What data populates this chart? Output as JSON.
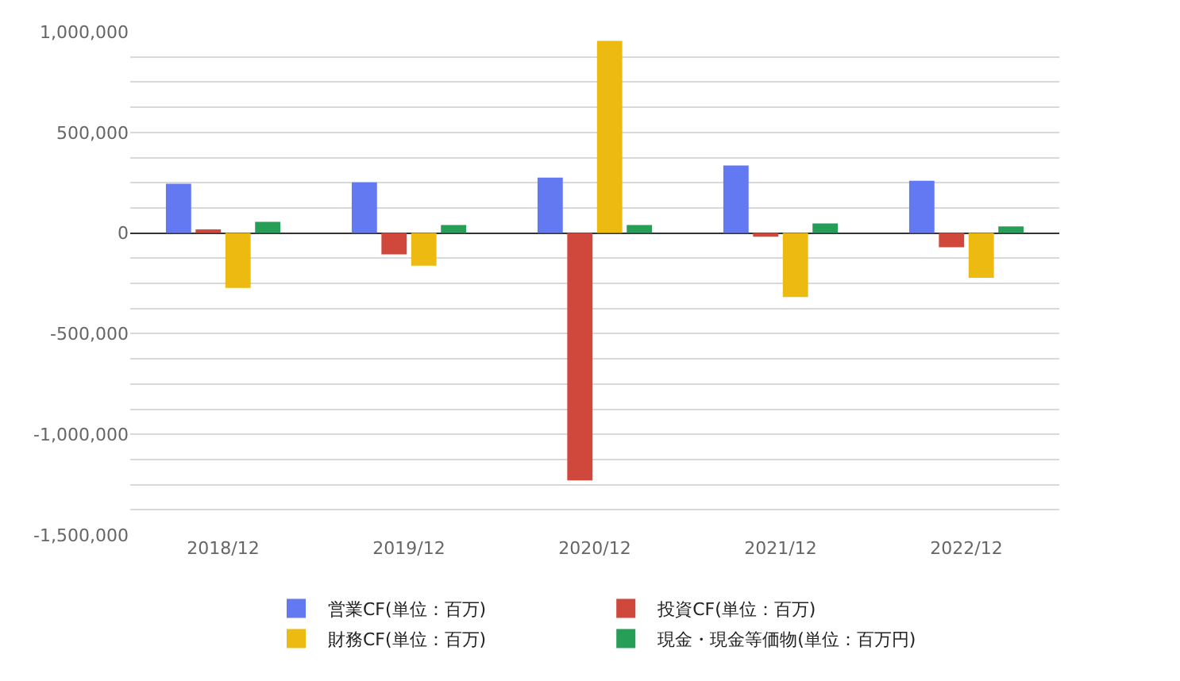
{
  "chart_data": {
    "type": "bar",
    "categories": [
      "2018/12",
      "2019/12",
      "2020/12",
      "2021/12",
      "2022/12"
    ],
    "series": [
      {
        "name": "営業CF(単位：百万)",
        "color": "#6379f2",
        "values": [
          245000,
          252000,
          275000,
          336000,
          260000
        ]
      },
      {
        "name": "投資CF(単位：百万)",
        "color": "#d0473b",
        "values": [
          18000,
          -106000,
          -1229000,
          -18000,
          -71000
        ]
      },
      {
        "name": "財務CF(単位：百万)",
        "color": "#ecba10",
        "values": [
          -273000,
          -162000,
          955000,
          -318000,
          -222000
        ]
      },
      {
        "name": "現金・現金等価物(単位：百万円)",
        "color": "#279e58",
        "values": [
          56000,
          40000,
          40000,
          48000,
          33000
        ]
      }
    ],
    "ylim": [
      -1500000,
      1000000
    ],
    "yticks": [
      {
        "value": -1500000,
        "label": "-1,500,000"
      },
      {
        "value": -1375000,
        "label": null
      },
      {
        "value": -1250000,
        "label": null
      },
      {
        "value": -1125000,
        "label": null
      },
      {
        "value": -1000000,
        "label": "-1,000,000"
      },
      {
        "value": -875000,
        "label": null
      },
      {
        "value": -750000,
        "label": null
      },
      {
        "value": -625000,
        "label": null
      },
      {
        "value": -500000,
        "label": "-500,000"
      },
      {
        "value": -375000,
        "label": null
      },
      {
        "value": -250000,
        "label": null
      },
      {
        "value": -125000,
        "label": null
      },
      0,
      {
        "value": 125000,
        "label": null
      },
      {
        "value": 250000,
        "label": null
      },
      {
        "value": 375000,
        "label": null
      },
      {
        "value": 500000,
        "label": "500,000"
      },
      {
        "value": 625000,
        "label": null
      },
      {
        "value": 750000,
        "label": null
      },
      {
        "value": 875000,
        "label": null
      },
      {
        "value": 1000000,
        "label": "1,000,000"
      }
    ],
    "grid": "y",
    "legend": "bottom"
  }
}
